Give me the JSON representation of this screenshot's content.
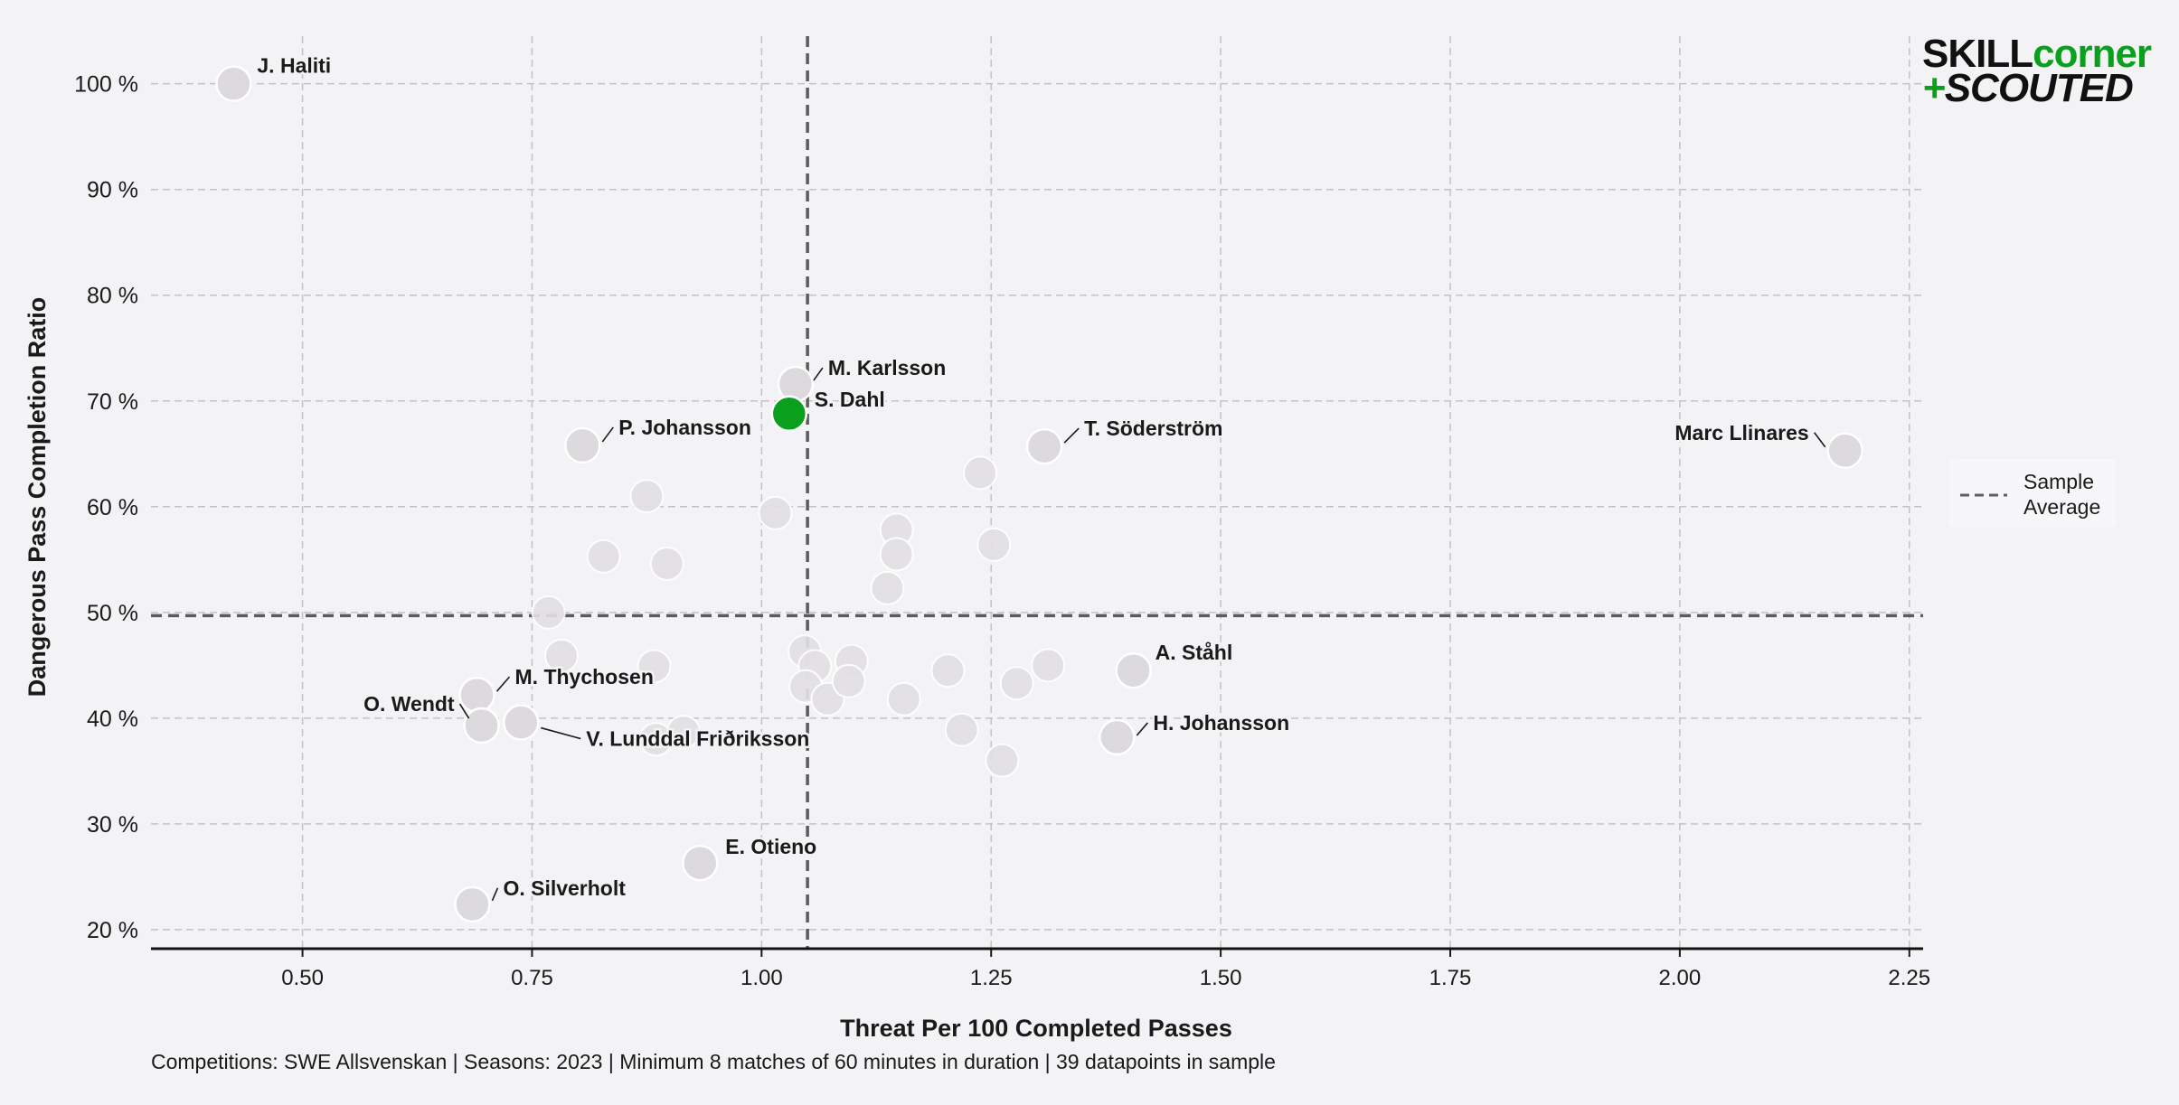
{
  "chart_data": {
    "type": "scatter",
    "title": "",
    "xlabel": "Threat Per 100 Completed Passes",
    "ylabel": "Dangerous Pass Completion Ratio",
    "xlim": [
      0.335,
      2.265
    ],
    "ylim": [
      18.2,
      104.5
    ],
    "x_ticks": [
      0.5,
      0.75,
      1.0,
      1.25,
      1.5,
      1.75,
      2.0,
      2.25
    ],
    "x_tick_labels": [
      "0.50",
      "0.75",
      "1.00",
      "1.25",
      "1.50",
      "1.75",
      "2.00",
      "2.25"
    ],
    "y_ticks": [
      20,
      30,
      40,
      50,
      60,
      70,
      80,
      90,
      100
    ],
    "y_tick_labels": [
      "20 %",
      "30 %",
      "40 %",
      "50 %",
      "60 %",
      "70 %",
      "80 %",
      "90 %",
      "100 %"
    ],
    "grid": true,
    "reference_lines": {
      "x_average": 1.05,
      "y_average": 49.7,
      "legend_label_line1": "Sample",
      "legend_label_line2": "Average",
      "legend_position": "right"
    },
    "highlight_color": "#0aa01e",
    "point_color": "#dcdadc",
    "labeled_points": [
      {
        "name": "J. Haliti",
        "x": 0.425,
        "y": 100.0
      },
      {
        "name": "M. Karlsson",
        "x": 1.037,
        "y": 71.6
      },
      {
        "name": "S. Dahl",
        "x": 1.03,
        "y": 68.8,
        "highlight": true
      },
      {
        "name": "P. Johansson",
        "x": 0.805,
        "y": 65.8
      },
      {
        "name": "T. Söderström",
        "x": 1.308,
        "y": 65.7
      },
      {
        "name": "Marc Llinares",
        "x": 2.18,
        "y": 65.3
      },
      {
        "name": "A. Ståhl",
        "x": 1.405,
        "y": 44.5
      },
      {
        "name": "M. Thychosen",
        "x": 0.69,
        "y": 42.2
      },
      {
        "name": "O. Wendt",
        "x": 0.695,
        "y": 39.3
      },
      {
        "name": "V. Lunddal Friðriksson",
        "x": 0.738,
        "y": 39.6
      },
      {
        "name": "H. Johansson",
        "x": 1.387,
        "y": 38.2
      },
      {
        "name": "E. Otieno",
        "x": 0.933,
        "y": 26.3
      },
      {
        "name": "O. Silverholt",
        "x": 0.685,
        "y": 22.4
      }
    ],
    "other_points": [
      {
        "x": 0.875,
        "y": 61.0
      },
      {
        "x": 1.015,
        "y": 59.4
      },
      {
        "x": 1.238,
        "y": 63.2
      },
      {
        "x": 0.828,
        "y": 55.3
      },
      {
        "x": 0.897,
        "y": 54.6
      },
      {
        "x": 1.147,
        "y": 57.8
      },
      {
        "x": 1.147,
        "y": 55.5
      },
      {
        "x": 1.253,
        "y": 56.4
      },
      {
        "x": 1.137,
        "y": 52.3
      },
      {
        "x": 0.768,
        "y": 50.0
      },
      {
        "x": 0.782,
        "y": 45.9
      },
      {
        "x": 0.883,
        "y": 44.9
      },
      {
        "x": 1.047,
        "y": 46.3
      },
      {
        "x": 1.058,
        "y": 44.9
      },
      {
        "x": 1.098,
        "y": 45.4
      },
      {
        "x": 1.048,
        "y": 43.0
      },
      {
        "x": 1.072,
        "y": 41.8
      },
      {
        "x": 1.095,
        "y": 43.5
      },
      {
        "x": 1.155,
        "y": 41.8
      },
      {
        "x": 1.203,
        "y": 44.5
      },
      {
        "x": 1.278,
        "y": 43.3
      },
      {
        "x": 1.312,
        "y": 45.0
      },
      {
        "x": 1.218,
        "y": 38.9
      },
      {
        "x": 1.262,
        "y": 36.0
      },
      {
        "x": 0.915,
        "y": 38.7
      },
      {
        "x": 0.885,
        "y": 38.0
      }
    ]
  },
  "footer": {
    "caption": "Competitions: SWE Allsvenskan | Seasons: 2023 | Minimum 8 matches of 60 minutes in duration | 39 datapoints in sample"
  },
  "logo": {
    "line1_dark": "SKILL",
    "line1_green": "corner",
    "line2_plus": "+",
    "line2_text": "SCOUTED",
    "dark_color": "#111111",
    "green_color": "#0aa01e"
  }
}
